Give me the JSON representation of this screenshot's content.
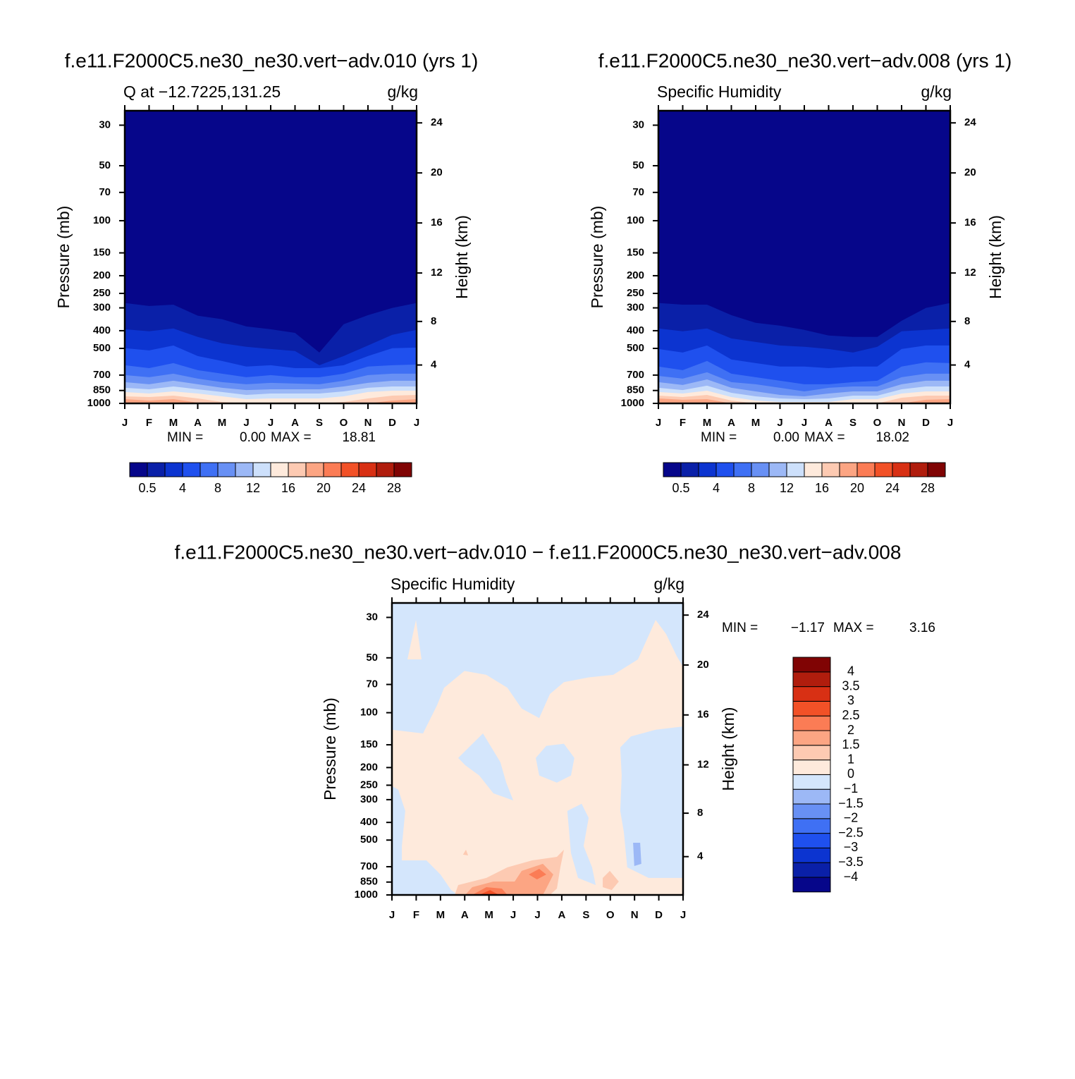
{
  "chart_data": [
    {
      "type": "contour",
      "title": "f.e11.F2000C5.ne30_ne30.vert−adv.010 (yrs 1)",
      "left_title": "Q at −12.7225,131.25",
      "right_title": "g/kg",
      "ylabel": "Pressure (mb)",
      "y2label": "Height (km)",
      "categories": [
        "J",
        "F",
        "M",
        "A",
        "M",
        "J",
        "J",
        "A",
        "S",
        "O",
        "N",
        "D",
        "J"
      ],
      "ylim": [
        1000,
        25
      ],
      "log": true,
      "yticks": [
        30,
        50,
        70,
        100,
        150,
        200,
        250,
        300,
        400,
        500,
        700,
        850,
        1000
      ],
      "y2ticks": [
        4,
        8,
        12,
        16,
        20,
        24
      ],
      "min_label": "MIN =",
      "min": {
        "value": 0,
        "label": "0.00"
      },
      "max_label": "MAX =",
      "max": 18.81,
      "levels": [
        0.5,
        2,
        4,
        6,
        8,
        10,
        12,
        14,
        16,
        18,
        20,
        22,
        24,
        26,
        28
      ],
      "label_stride": 2,
      "colorbar": "horizontal",
      "colors": [
        "#06068a",
        "#0a20a8",
        "#0c34d0",
        "#1f50ee",
        "#3f70f4",
        "#6890f4",
        "#9cb8f6",
        "#cde0fb",
        "#feeadc",
        "#fdcab2",
        "#fca583",
        "#fb7c55",
        "#f25127",
        "#d83014",
        "#b01d0d",
        "#800404"
      ],
      "background_band": 0,
      "boundaries": [
        [
          282,
          293,
          288,
          331,
          346,
          379,
          393,
          411,
          527,
          369,
          329,
          300,
          282
        ],
        [
          393,
          403,
          389,
          433,
          469,
          490,
          504,
          517,
          618,
          551,
          482,
          421,
          396
        ],
        [
          499,
          513,
          482,
          551,
          586,
          629,
          618,
          641,
          641,
          618,
          551,
          499,
          495
        ],
        [
          618,
          641,
          602,
          658,
          688,
          719,
          700,
          719,
          719,
          688,
          629,
          618,
          613
        ],
        [
          700,
          719,
          688,
          732,
          765,
          786,
          772,
          779,
          786,
          752,
          700,
          688,
          688
        ],
        [
          765,
          786,
          752,
          786,
          822,
          845,
          837,
          837,
          837,
          808,
          772,
          752,
          752
        ],
        [
          822,
          837,
          808,
          837,
          867,
          899,
          883,
          883,
          883,
          860,
          822,
          808,
          808
        ],
        [
          867,
          883,
          860,
          883,
          915,
          948,
          940,
          940,
          940,
          915,
          867,
          852,
          852
        ],
        [
          915,
          923,
          907,
          940,
          982,
          1000,
          1000,
          1000,
          1000,
          982,
          940,
          907,
          899
        ],
        [
          948,
          965,
          948,
          991,
          1000,
          1000,
          1000,
          1000,
          1000,
          1000,
          1000,
          965,
          948
        ]
      ]
    },
    {
      "type": "contour",
      "title": "f.e11.F2000C5.ne30_ne30.vert−adv.008 (yrs 1)",
      "left_title": "Specific Humidity",
      "right_title": "g/kg",
      "ylabel": "Pressure (mb)",
      "y2label": "Height (km)",
      "categories": [
        "J",
        "F",
        "M",
        "A",
        "M",
        "J",
        "J",
        "A",
        "S",
        "O",
        "N",
        "D",
        "J"
      ],
      "ylim": [
        1000,
        25
      ],
      "log": true,
      "yticks": [
        30,
        50,
        70,
        100,
        150,
        200,
        250,
        300,
        400,
        500,
        700,
        850,
        1000
      ],
      "y2ticks": [
        4,
        8,
        12,
        16,
        20,
        24
      ],
      "min_label": "MIN =",
      "min": {
        "value": 0,
        "label": "0.00"
      },
      "max_label": "MAX =",
      "max": 18.02,
      "levels": [
        0.5,
        2,
        4,
        6,
        8,
        10,
        12,
        14,
        16,
        18,
        20,
        22,
        24,
        26,
        28
      ],
      "label_stride": 2,
      "colorbar": "horizontal",
      "colors": [
        "#06068a",
        "#0a20a8",
        "#0c34d0",
        "#1f50ee",
        "#3f70f4",
        "#6890f4",
        "#9cb8f6",
        "#cde0fb",
        "#feeadc",
        "#fdcab2",
        "#fca583",
        "#fb7c55",
        "#f25127",
        "#d83014",
        "#b01d0d",
        "#800404"
      ],
      "background_band": 0,
      "boundaries": [
        [
          282,
          288,
          288,
          329,
          362,
          375,
          396,
          425,
          433,
          433,
          353,
          300,
          282
        ],
        [
          389,
          403,
          389,
          441,
          461,
          482,
          490,
          504,
          527,
          490,
          403,
          396,
          389
        ],
        [
          504,
          527,
          482,
          575,
          602,
          629,
          629,
          641,
          629,
          629,
          504,
          482,
          482
        ],
        [
          629,
          658,
          586,
          688,
          719,
          752,
          786,
          786,
          765,
          752,
          629,
          596,
          602
        ],
        [
          707,
          732,
          676,
          765,
          786,
          822,
          860,
          822,
          808,
          808,
          719,
          688,
          688
        ],
        [
          765,
          793,
          739,
          822,
          860,
          899,
          915,
          883,
          860,
          860,
          786,
          752,
          752
        ],
        [
          822,
          845,
          800,
          875,
          915,
          940,
          948,
          940,
          907,
          907,
          837,
          808,
          808
        ],
        [
          867,
          883,
          852,
          923,
          965,
          982,
          982,
          982,
          948,
          948,
          883,
          860,
          860
        ],
        [
          907,
          923,
          899,
          965,
          1000,
          1000,
          1000,
          1000,
          1000,
          1000,
          931,
          907,
          907
        ],
        [
          940,
          956,
          948,
          1000,
          1000,
          1000,
          1000,
          1000,
          1000,
          1000,
          1000,
          956,
          948
        ]
      ]
    },
    {
      "type": "contour",
      "title": "f.e11.F2000C5.ne30_ne30.vert−adv.010 − f.e11.F2000C5.ne30_ne30.vert−adv.008",
      "left_title": "Specific Humidity",
      "right_title": "g/kg",
      "ylabel": "Pressure (mb)",
      "y2label": "Height (km)",
      "categories": [
        "J",
        "F",
        "M",
        "A",
        "M",
        "J",
        "J",
        "A",
        "S",
        "O",
        "N",
        "D",
        "J"
      ],
      "ylim": [
        1000,
        25
      ],
      "log": true,
      "yticks": [
        30,
        50,
        70,
        100,
        150,
        200,
        250,
        300,
        400,
        500,
        700,
        850,
        1000
      ],
      "y2ticks": [
        4,
        8,
        12,
        16,
        20,
        24
      ],
      "min_label": "MIN =",
      "min": {
        "value": -1.17,
        "label": "−1.17"
      },
      "max_label": "MAX =",
      "max": 3.16,
      "levels": [
        {
          "value": -4,
          "label": "−4"
        },
        {
          "value": -3.5,
          "label": "−3.5"
        },
        {
          "value": -3,
          "label": "−3"
        },
        {
          "value": -2.5,
          "label": "−2.5"
        },
        {
          "value": -2,
          "label": "−2"
        },
        {
          "value": -1.5,
          "label": "−1.5"
        },
        {
          "value": -1,
          "label": "−1"
        },
        0,
        1,
        1.5,
        2,
        2.5,
        3,
        3.5,
        4
      ],
      "label_stride": 1,
      "colorbar": "vertical",
      "colors": [
        "#06068a",
        "#0a20a8",
        "#0c34d0",
        "#1f50ee",
        "#3f70f4",
        "#6890f4",
        "#9cb8f6",
        "#d4e6fc",
        "#feeadc",
        "#fdcab2",
        "#fca583",
        "#fb7c55",
        "#f25127",
        "#d83014",
        "#b01d0d",
        "#800404"
      ],
      "background_band": 7,
      "regions": [
        {
          "band": 8,
          "month": [
            0,
            1.28,
            1.86,
            2.15,
            2.99,
            3.89,
            4.76,
            5.35,
            6.07,
            6.51,
            7.09,
            8.11,
            9.12,
            10.14,
            10.87,
            11.3,
            11.74,
            12,
            12,
            10.87,
            9.85,
            9.41,
            9.47,
            9.41,
            9.56,
            9.7,
            10.58,
            12,
            12,
            2.73,
            2.44,
            2,
            1.42,
            0.41,
            0.41,
            0.55,
            0.26,
            0
          ],
          "pressure": [
            124,
            130,
            91,
            73,
            59,
            62,
            73,
            95,
            107,
            79,
            68,
            64,
            62,
            51,
            31,
            37,
            49,
            56,
            119,
            124,
            135,
            155,
            221,
            346,
            452,
            706,
            807,
            807,
            1000,
            1000,
            940,
            772,
            646,
            646,
            540,
            346,
            264,
            253
          ]
        },
        {
          "band": 7,
          "month": [
            2.73,
            3.75,
            4.47,
            4.71,
            5,
            4.18,
            3.6,
            3.02
          ],
          "pressure": [
            177,
            130,
            187,
            242,
            303,
            277,
            221,
            194
          ]
        },
        {
          "band": 7,
          "month": [
            5.93,
            6.36,
            7.09,
            7.52,
            7.38,
            6.8,
            6.07
          ],
          "pressure": [
            177,
            152,
            148,
            177,
            221,
            242,
            221
          ]
        },
        {
          "band": 7,
          "month": [
            7.23,
            7.82,
            8.11,
            7.9,
            8.25,
            8.4,
            7.67,
            7.38
          ],
          "pressure": [
            346,
            316,
            378,
            540,
            706,
            883,
            807,
            590
          ]
        },
        {
          "band": 6,
          "month": [
            9.94,
            10.23,
            10.28,
            9.99
          ],
          "pressure": [
            517,
            517,
            675,
            694
          ]
        },
        {
          "band": 8,
          "month": [
            0.64,
            0.99,
            1.22
          ],
          "pressure": [
            51,
            31,
            51
          ]
        },
        {
          "band": 9,
          "month": [
            2.59,
            2.73,
            3.89,
            4.76,
            5.78,
            6.8,
            7.09,
            6.94,
            6.8,
            6.51
          ],
          "pressure": [
            1000,
            883,
            807,
            706,
            646,
            618,
            565,
            706,
            923,
            1000
          ]
        },
        {
          "band": 9,
          "month": [
            8.69,
            8.98,
            9.35,
            9.06,
            8.69
          ],
          "pressure": [
            807,
            738,
            844,
            940,
            907
          ]
        },
        {
          "band": 9,
          "month": [
            2.93,
            3.05,
            3.14
          ],
          "pressure": [
            601,
            565,
            607
          ]
        },
        {
          "band": 10,
          "month": [
            3.02,
            3.31,
            4.18,
            5.06,
            5.35,
            6.22,
            6.65,
            6.36,
            6.22
          ],
          "pressure": [
            1000,
            907,
            844,
            844,
            738,
            675,
            772,
            923,
            1000
          ]
        },
        {
          "band": 11,
          "month": [
            3.31,
            3.89,
            4.53,
            4.76
          ],
          "pressure": [
            1000,
            907,
            923,
            1000
          ]
        },
        {
          "band": 11,
          "month": [
            5.64,
            6.07,
            6.36,
            5.98
          ],
          "pressure": [
            772,
            719,
            772,
            822
          ]
        },
        {
          "band": 12,
          "month": [
            3.6,
            4.04,
            4.42
          ],
          "pressure": [
            1000,
            940,
            1000
          ]
        }
      ]
    }
  ]
}
